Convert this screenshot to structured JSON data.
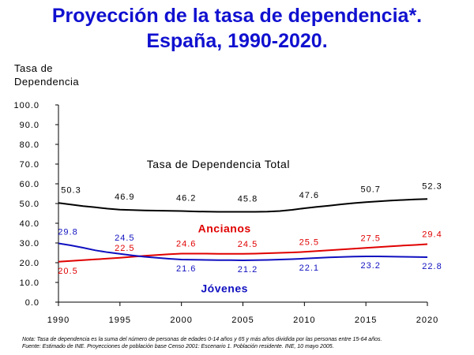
{
  "title_line1": "Proyección de la tasa de dependencia*.",
  "title_line2": "España, 1990-2020.",
  "note": "Nota: Tasa de dependencia es la suma del número de personas de edades 0-14 años y 65 y más años dividida por las personas entre 15-64 años.",
  "source": "Fuente: Estimado de INE. Proyecciones de población base Censo 2001: Escenario 1. Población residente. INE, 10 mayo 2005.",
  "chart_data": {
    "type": "line",
    "ylabel": "Tasa de Dependencia",
    "xlabel": "",
    "ylim": [
      0,
      100
    ],
    "yticks": [
      "0.0",
      "10.0",
      "20.0",
      "30.0",
      "40.0",
      "50.0",
      "60.0",
      "70.0",
      "80.0",
      "90.0",
      "100.0"
    ],
    "xlim": [
      1990,
      2020
    ],
    "xticks": [
      "1990",
      "1995",
      "2000",
      "2005",
      "2010",
      "2015",
      "2020"
    ],
    "grid": false,
    "series": [
      {
        "name": "Tasa de Dependencia Total",
        "color": "#000000",
        "x": [
          1990,
          1991,
          1992,
          1993,
          1994,
          1995,
          1996,
          1997,
          1998,
          1999,
          2000,
          2001,
          2002,
          2003,
          2004,
          2005,
          2006,
          2007,
          2008,
          2009,
          2010,
          2011,
          2012,
          2013,
          2014,
          2015,
          2016,
          2017,
          2018,
          2019,
          2020
        ],
        "values": [
          50.3,
          49.5,
          48.7,
          48.1,
          47.4,
          46.9,
          46.7,
          46.5,
          46.4,
          46.3,
          46.2,
          46.0,
          45.9,
          45.8,
          45.8,
          45.8,
          45.8,
          45.9,
          46.2,
          46.8,
          47.6,
          48.3,
          48.9,
          49.6,
          50.2,
          50.7,
          51.1,
          51.5,
          51.8,
          52.1,
          52.3
        ],
        "labels": [
          {
            "x": 1990,
            "value": "50.3"
          },
          {
            "x": 1995,
            "value": "46.9"
          },
          {
            "x": 2000,
            "value": "46.2"
          },
          {
            "x": 2005,
            "value": "45.8"
          },
          {
            "x": 2010,
            "value": "47.6"
          },
          {
            "x": 2015,
            "value": "50.7"
          },
          {
            "x": 2020,
            "value": "52.3"
          }
        ]
      },
      {
        "name": "Ancianos",
        "color": "#e00000",
        "x": [
          1990,
          1991,
          1992,
          1993,
          1994,
          1995,
          1996,
          1997,
          1998,
          1999,
          2000,
          2001,
          2002,
          2003,
          2004,
          2005,
          2006,
          2007,
          2008,
          2009,
          2010,
          2011,
          2012,
          2013,
          2014,
          2015,
          2016,
          2017,
          2018,
          2019,
          2020
        ],
        "values": [
          20.5,
          20.9,
          21.3,
          21.7,
          22.1,
          22.5,
          23.0,
          23.5,
          23.9,
          24.3,
          24.6,
          24.6,
          24.6,
          24.5,
          24.5,
          24.5,
          24.6,
          24.8,
          25.0,
          25.2,
          25.5,
          25.9,
          26.3,
          26.7,
          27.1,
          27.5,
          27.9,
          28.3,
          28.7,
          29.0,
          29.4
        ],
        "labels": [
          {
            "x": 1990,
            "value": "20.5"
          },
          {
            "x": 1995,
            "value": "22.5"
          },
          {
            "x": 2000,
            "value": "24.6"
          },
          {
            "x": 2005,
            "value": "24.5"
          },
          {
            "x": 2010,
            "value": "25.5"
          },
          {
            "x": 2015,
            "value": "27.5"
          },
          {
            "x": 2020,
            "value": "29.4"
          }
        ]
      },
      {
        "name": "Jóvenes",
        "color": "#1010c0",
        "x": [
          1990,
          1991,
          1992,
          1993,
          1994,
          1995,
          1996,
          1997,
          1998,
          1999,
          2000,
          2001,
          2002,
          2003,
          2004,
          2005,
          2006,
          2007,
          2008,
          2009,
          2010,
          2011,
          2012,
          2013,
          2014,
          2015,
          2016,
          2017,
          2018,
          2019,
          2020
        ],
        "values": [
          29.8,
          28.8,
          27.6,
          26.3,
          25.3,
          24.5,
          23.7,
          23.0,
          22.5,
          22.0,
          21.6,
          21.5,
          21.4,
          21.3,
          21.3,
          21.2,
          21.3,
          21.4,
          21.6,
          21.8,
          22.1,
          22.4,
          22.7,
          22.9,
          23.1,
          23.2,
          23.2,
          23.1,
          23.0,
          22.9,
          22.8
        ],
        "labels": [
          {
            "x": 1990,
            "value": "29.8"
          },
          {
            "x": 1995,
            "value": "24.5"
          },
          {
            "x": 2000,
            "value": "21.6"
          },
          {
            "x": 2005,
            "value": "21.2"
          },
          {
            "x": 2010,
            "value": "22.1"
          },
          {
            "x": 2015,
            "value": "23.2"
          },
          {
            "x": 2020,
            "value": "22.8"
          }
        ]
      }
    ],
    "annotations": [
      {
        "text": "Tasa de Dependencia Total",
        "color": "#000000"
      },
      {
        "text": "Ancianos",
        "color": "#e00000"
      },
      {
        "text": "Jóvenes",
        "color": "#1010c0"
      }
    ]
  }
}
